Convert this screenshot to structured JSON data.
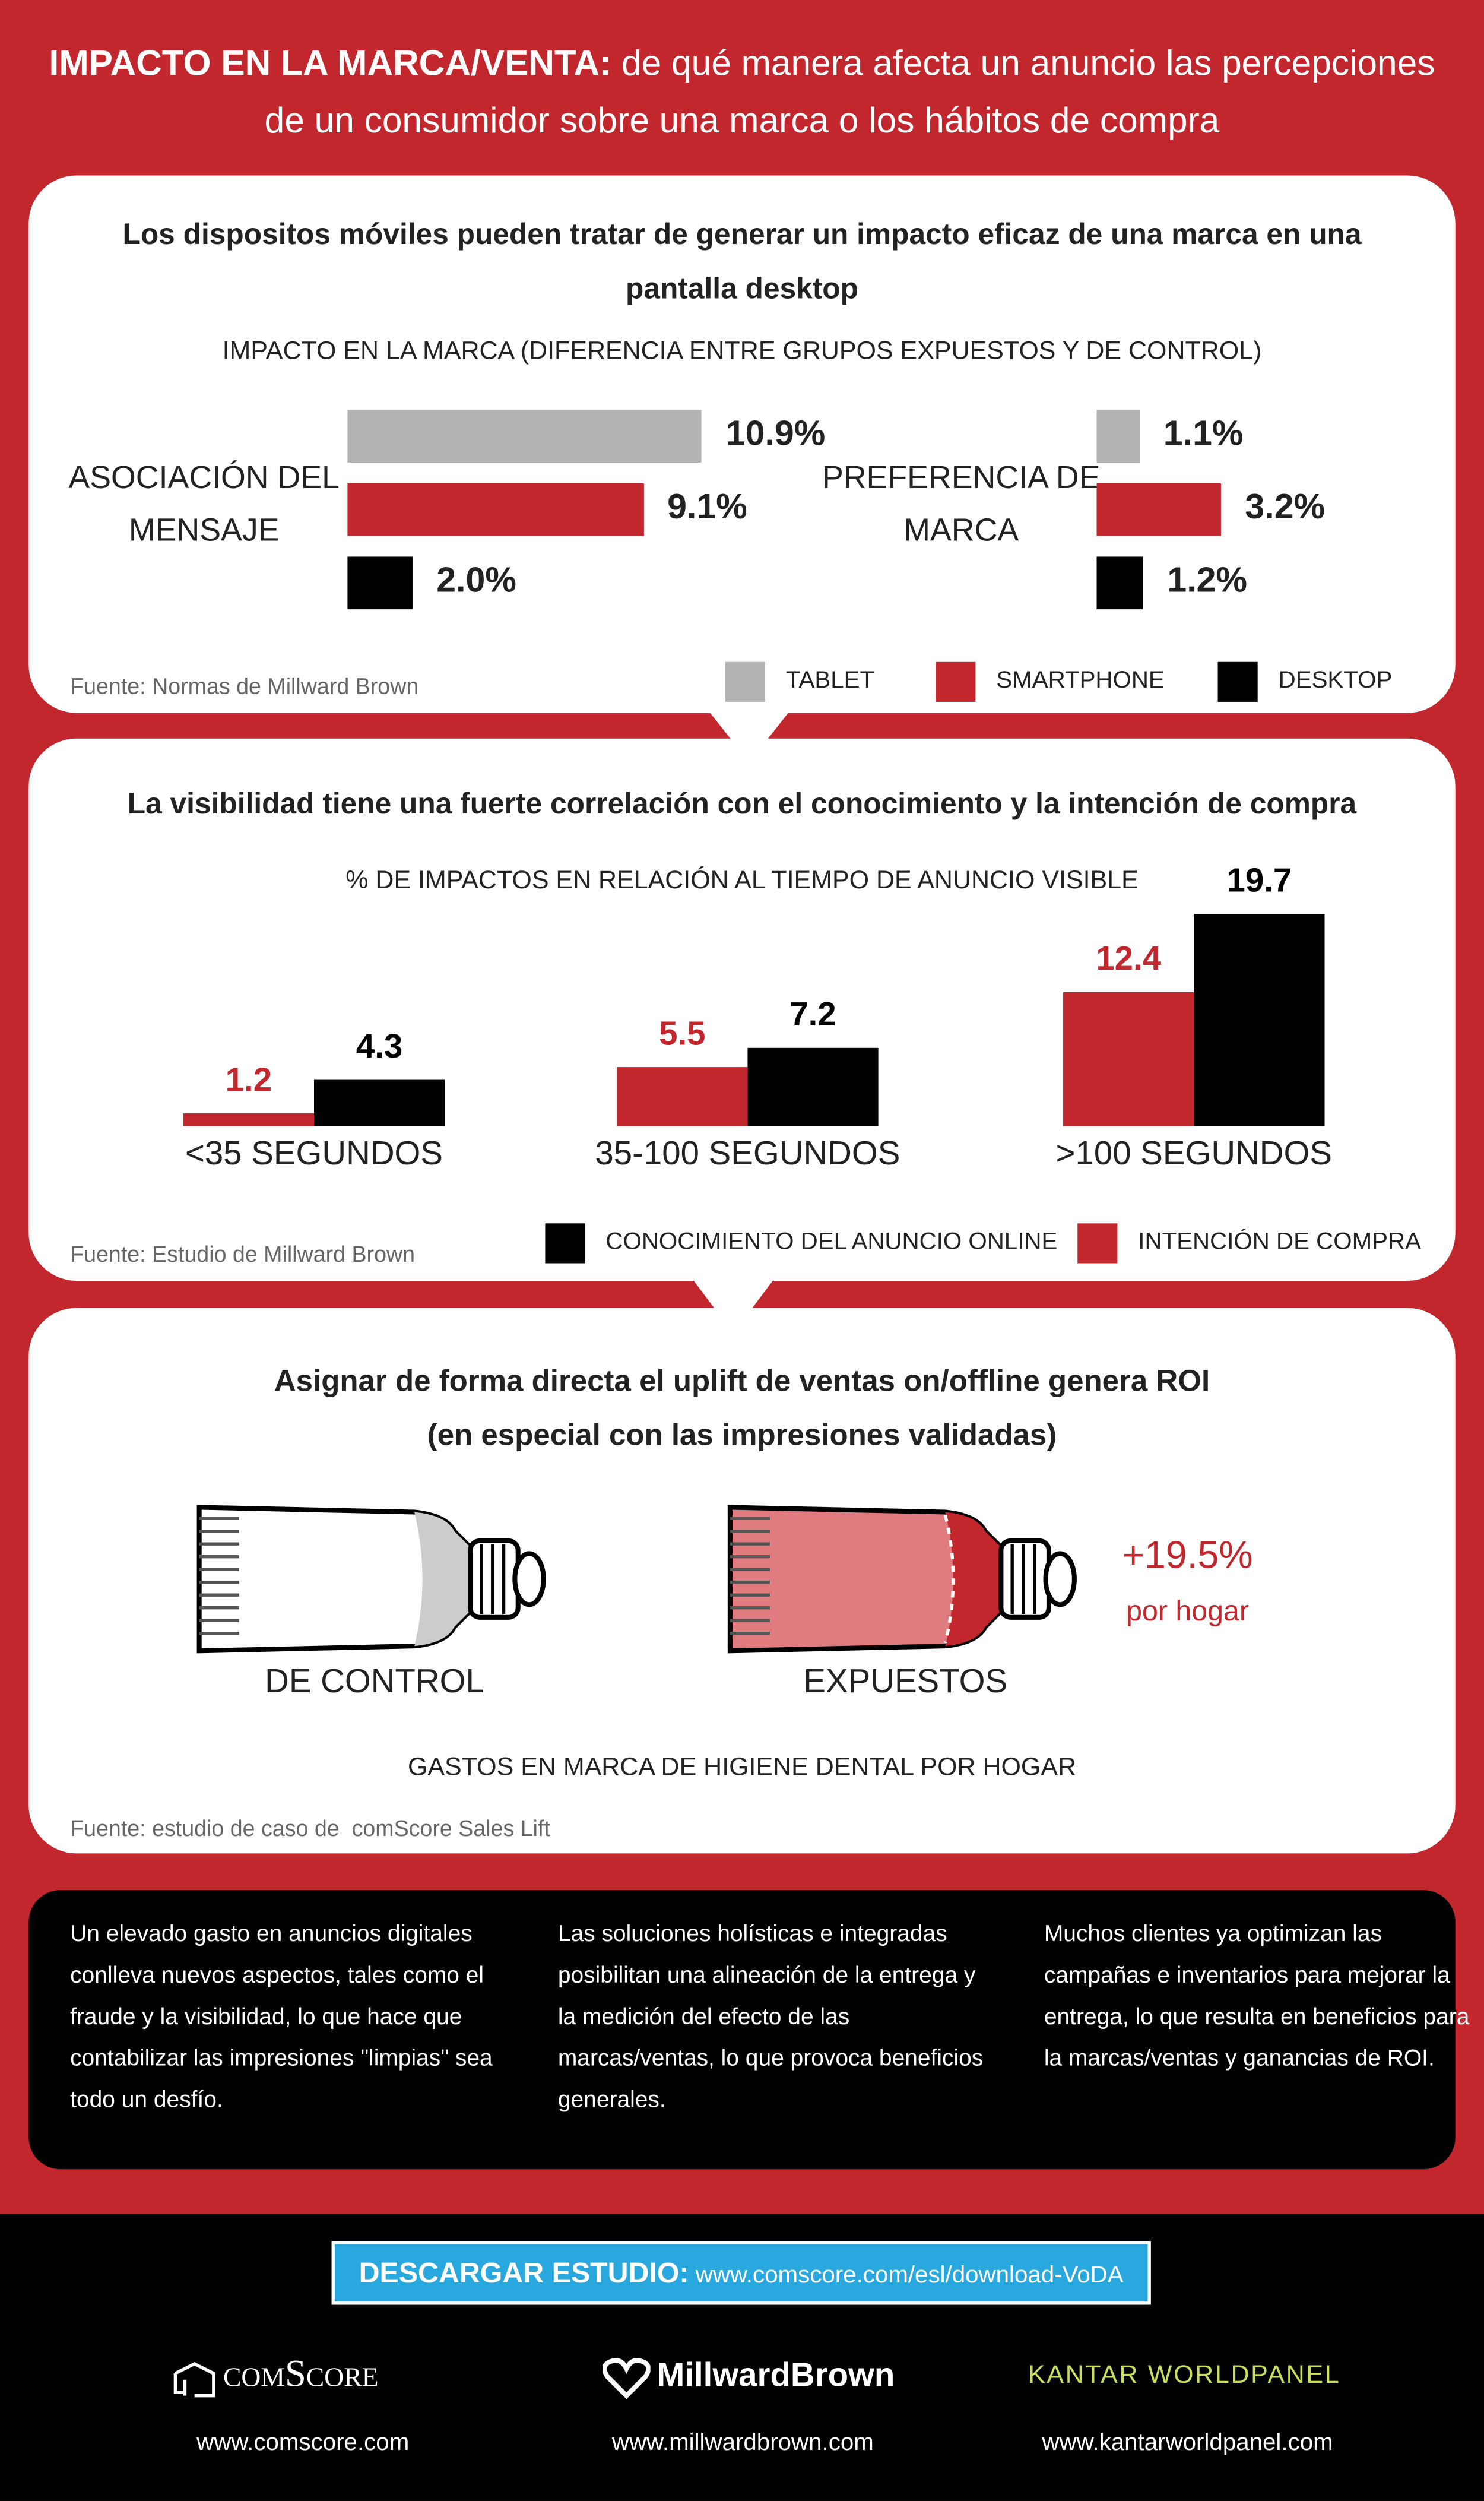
{
  "header": {
    "title_bold": "IMPACTO EN LA MARCA/VENTA:",
    "title_rest": "de qué manera afecta un anuncio las percepciones de un consumidor sobre una marca o los hábitos de compra"
  },
  "chart_data": [
    {
      "type": "bar",
      "orientation": "horizontal",
      "heading": "Los dispositos móviles pueden tratar de generar un impacto eficaz de una marca en una pantalla desktop",
      "title": "IMPACTO EN LA MARCA (DIFERENCIA ENTRE GRUPOS EXPUESTOS Y DE CONTROL)",
      "categories": [
        "ASOCIACIÓN DEL MENSAJE",
        "PREFERENCIA DE MARCA"
      ],
      "series": [
        {
          "name": "TABLET",
          "color": "#b3b3b3",
          "values": [
            10.9,
            1.1
          ],
          "value_labels": [
            "10.9%",
            "1.1%"
          ]
        },
        {
          "name": "SMARTPHONE",
          "color": "#c1272d",
          "values": [
            9.1,
            3.2
          ],
          "value_labels": [
            "9.1%",
            "3.2%"
          ]
        },
        {
          "name": "DESKTOP",
          "color": "#000000",
          "values": [
            2.0,
            1.2
          ],
          "value_labels": [
            "2.0%",
            "1.2%"
          ]
        }
      ],
      "source": "Fuente: Normas de Millward Brown"
    },
    {
      "type": "bar",
      "orientation": "vertical",
      "heading": "La visibilidad tiene una fuerte correlación con el conocimiento y la intención de compra",
      "title": "% DE IMPACTOS EN RELACIÓN AL TIEMPO DE ANUNCIO VISIBLE",
      "categories": [
        "<35 SEGUNDOS",
        "35-100 SEGUNDOS",
        ">100 SEGUNDOS"
      ],
      "series": [
        {
          "name": "CONOCIMIENTO DEL ANUNCIO ONLINE",
          "color": "#000000",
          "values": [
            4.3,
            7.2,
            19.7
          ]
        },
        {
          "name": "INTENCIÓN DE COMPRA",
          "color": "#c1272d",
          "values": [
            1.2,
            5.5,
            12.4
          ]
        }
      ],
      "source": "Fuente: Estudio de Millward Brown"
    }
  ],
  "sales_lift": {
    "heading_line1": "Asignar de forma directa el uplift de ventas on/offline genera ROI",
    "heading_line2": "(en especial con las impresiones validadas)",
    "control_label": "DE CONTROL",
    "exposed_label": "EXPUESTOS",
    "uplift": "+19.5%",
    "uplift_note": "por hogar",
    "caption": "GASTOS EN MARCA DE HIGIENE DENTAL POR HOGAR",
    "source": "Fuente: estudio de caso de  comScore Sales Lift"
  },
  "summary": [
    "Un elevado gasto en anuncios digitales conlleva nuevos aspectos, tales como el fraude y la visibilidad, lo que hace que contabilizar las impresiones \"limpias\" sea todo un desfío.",
    "Las soluciones holísticas e integradas posibilitan una alineación de la entrega y la medición del efecto de las marcas/ventas, lo que provoca beneficios generales.",
    "Muchos clientes ya optimizan las campañas e inventarios para mejorar la entrega, lo que resulta en beneficios para la marcas/ventas y ganancias de ROI."
  ],
  "footer": {
    "cta_label": "DESCARGAR ESTUDIO:",
    "cta_url": "www.comscore.com/esl/download-VoDA",
    "logos": [
      "comScore",
      "MillwardBrown",
      "KANTAR WORLDPANEL"
    ],
    "urls": [
      "www.comscore.com",
      "www.millwardbrown.com",
      "www.kantarworldpanel.com"
    ]
  }
}
